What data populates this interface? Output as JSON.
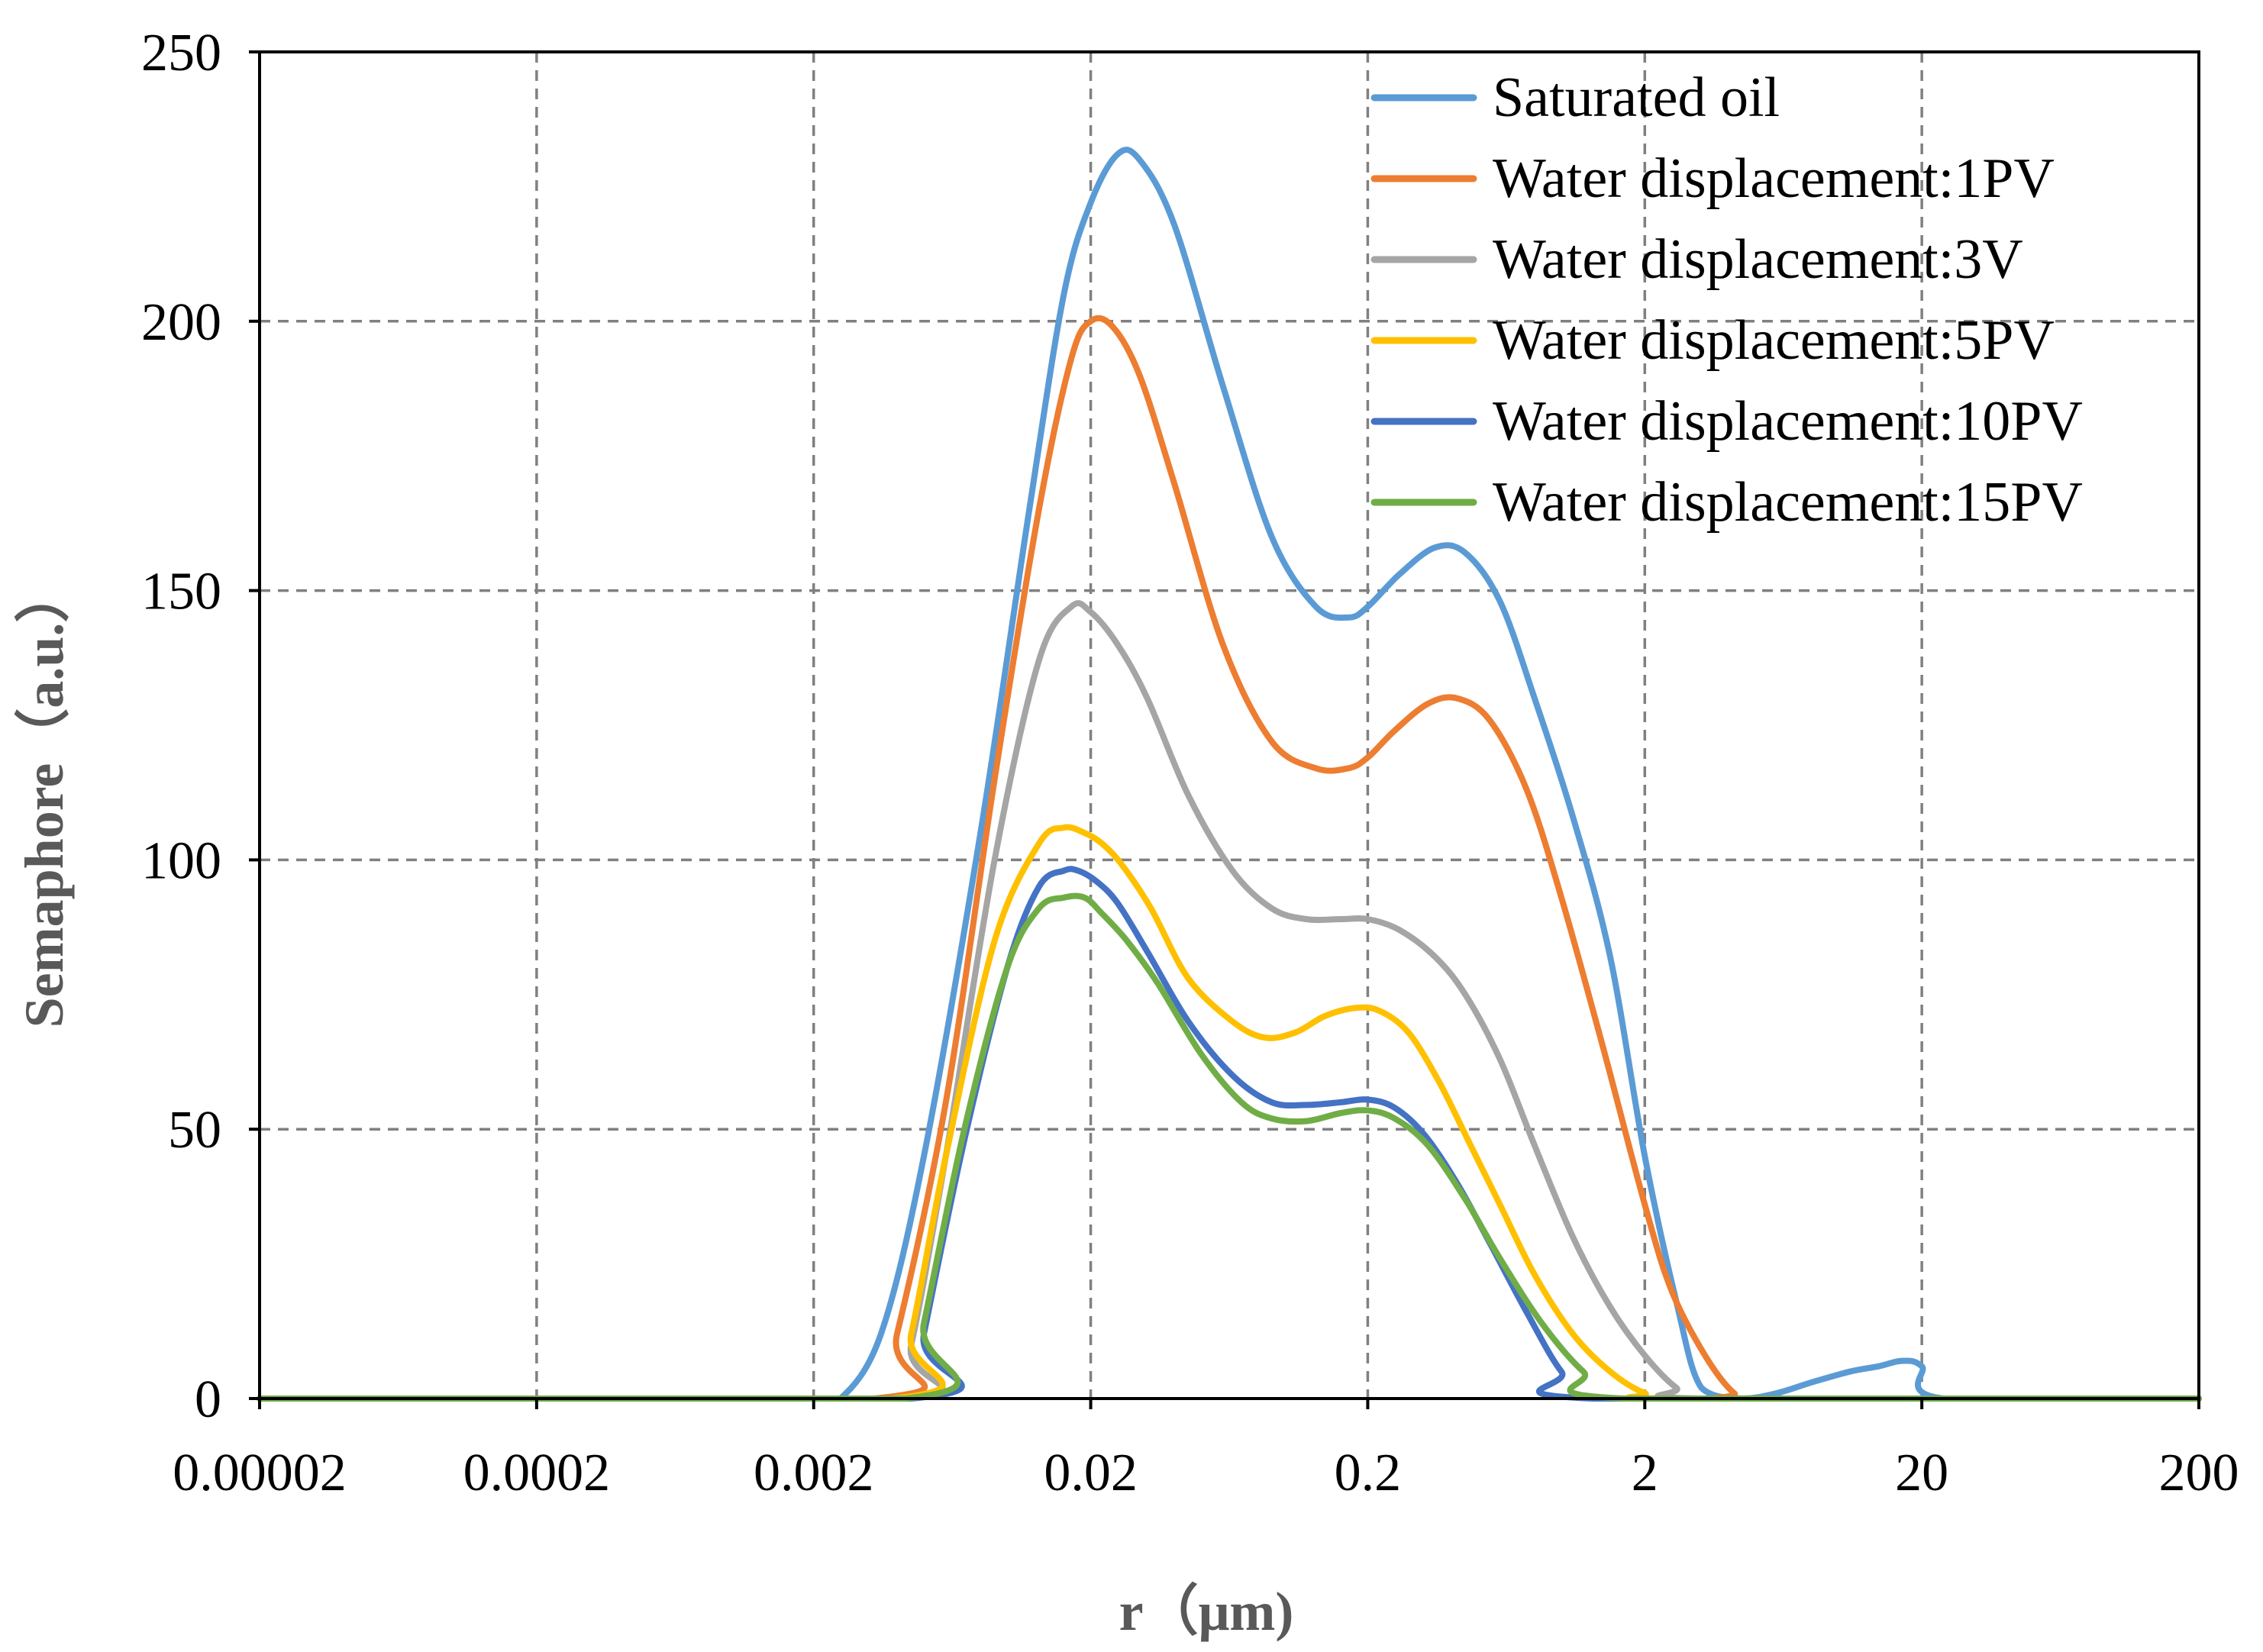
{
  "chart_data": {
    "type": "line",
    "title": "",
    "xlabel": "r（μm)",
    "ylabel": "Semaphore（a.u.）",
    "xscale": "log",
    "xlim": [
      2e-05,
      200
    ],
    "ylim": [
      0,
      250
    ],
    "grid": true,
    "legend_position": "top-right",
    "x_ticks": [
      2e-05,
      0.0002,
      0.002,
      0.02,
      0.2,
      2,
      20,
      200
    ],
    "x_tick_labels": [
      "0.00002",
      "0.0002",
      "0.002",
      "0.02",
      "0.2",
      "2",
      "20",
      "200"
    ],
    "y_ticks": [
      0,
      50,
      100,
      150,
      200,
      250
    ],
    "y_tick_labels": [
      "0",
      "50",
      "100",
      "150",
      "200",
      "250"
    ],
    "series": [
      {
        "name": "Saturated oil",
        "color": "#5B9BD5",
        "x": [
          2e-05,
          0.002,
          0.0025,
          0.0035,
          0.005,
          0.008,
          0.012,
          0.016,
          0.02,
          0.025,
          0.03,
          0.04,
          0.06,
          0.09,
          0.13,
          0.17,
          0.2,
          0.26,
          0.35,
          0.45,
          0.6,
          0.8,
          1.1,
          1.5,
          2.0,
          2.6,
          3.2,
          4.5,
          6,
          8,
          11,
          14,
          17,
          20,
          24,
          200
        ],
        "values": [
          0,
          0,
          0,
          12,
          45,
          105,
          165,
          205,
          222,
          231,
          230,
          218,
          188,
          160,
          147,
          145,
          147,
          153,
          158,
          157,
          148,
          130,
          108,
          82,
          45,
          18,
          2,
          0,
          1,
          3,
          5,
          6,
          7,
          6,
          0,
          0
        ]
      },
      {
        "name": "Water displacement:1PV",
        "color": "#ED7D31",
        "x": [
          2e-05,
          0.0033,
          0.004,
          0.006,
          0.009,
          0.013,
          0.017,
          0.02,
          0.024,
          0.03,
          0.04,
          0.06,
          0.09,
          0.13,
          0.17,
          0.2,
          0.25,
          0.33,
          0.42,
          0.55,
          0.75,
          1.0,
          1.4,
          2.0,
          2.5,
          3.3,
          4.2,
          5.0,
          200
        ],
        "values": [
          0,
          0,
          12,
          55,
          115,
          165,
          193,
          200,
          199,
          190,
          170,
          140,
          122,
          117,
          117,
          119,
          124,
          129,
          130,
          126,
          113,
          93,
          66,
          36,
          20,
          8,
          1,
          0,
          0
        ]
      },
      {
        "name": "Water displacement:3V",
        "color": "#A5A5A5",
        "x": [
          2e-05,
          0.0038,
          0.0045,
          0.006,
          0.009,
          0.013,
          0.017,
          0.02,
          0.025,
          0.032,
          0.045,
          0.065,
          0.09,
          0.12,
          0.16,
          0.2,
          0.26,
          0.35,
          0.45,
          0.6,
          0.8,
          1.1,
          1.5,
          2.0,
          2.6,
          3.2,
          200
        ],
        "values": [
          0,
          0,
          10,
          45,
          100,
          137,
          147,
          146,
          140,
          130,
          112,
          98,
          91,
          89,
          89,
          89,
          87,
          82,
          75,
          63,
          47,
          30,
          17,
          8,
          2,
          0,
          0
        ]
      },
      {
        "name": "Water displacement:5PV",
        "color": "#FFC000",
        "x": [
          2e-05,
          0.0038,
          0.0045,
          0.006,
          0.009,
          0.013,
          0.016,
          0.019,
          0.022,
          0.026,
          0.033,
          0.045,
          0.065,
          0.085,
          0.11,
          0.14,
          0.18,
          0.22,
          0.28,
          0.36,
          0.46,
          0.6,
          0.8,
          1.1,
          1.5,
          2.0,
          2.6,
          200
        ],
        "values": [
          0,
          0,
          12,
          45,
          85,
          103,
          106,
          105,
          103,
          99,
          91,
          78,
          70,
          67,
          68,
          71,
          72.5,
          72,
          68,
          59,
          48,
          36,
          23,
          12,
          5,
          1,
          0,
          0
        ]
      },
      {
        "name": "Water displacement:10PV",
        "color": "#4472C4",
        "x": [
          2e-05,
          0.0045,
          0.005,
          0.007,
          0.01,
          0.013,
          0.016,
          0.018,
          0.021,
          0.025,
          0.032,
          0.045,
          0.065,
          0.09,
          0.12,
          0.16,
          0.2,
          0.25,
          0.32,
          0.42,
          0.55,
          0.75,
          1.0,
          1.3,
          200
        ],
        "values": [
          0,
          0,
          12,
          48,
          80,
          95,
          98,
          98,
          96,
          92,
          83,
          70,
          60,
          55,
          54.5,
          55,
          55.5,
          54,
          49,
          40,
          29,
          16,
          5,
          0,
          0
        ]
      },
      {
        "name": "Water displacement:15PV",
        "color": "#70AD47",
        "x": [
          2e-05,
          0.0043,
          0.005,
          0.007,
          0.01,
          0.013,
          0.016,
          0.019,
          0.022,
          0.027,
          0.035,
          0.05,
          0.07,
          0.09,
          0.12,
          0.16,
          0.2,
          0.25,
          0.33,
          0.45,
          0.6,
          0.85,
          1.2,
          1.7,
          200
        ],
        "values": [
          0,
          0,
          14,
          50,
          80,
          91,
          93,
          93,
          90,
          85,
          77,
          64,
          55,
          52,
          51.5,
          53,
          53.5,
          52,
          47,
          37,
          26,
          14,
          5,
          0,
          0
        ]
      }
    ]
  }
}
